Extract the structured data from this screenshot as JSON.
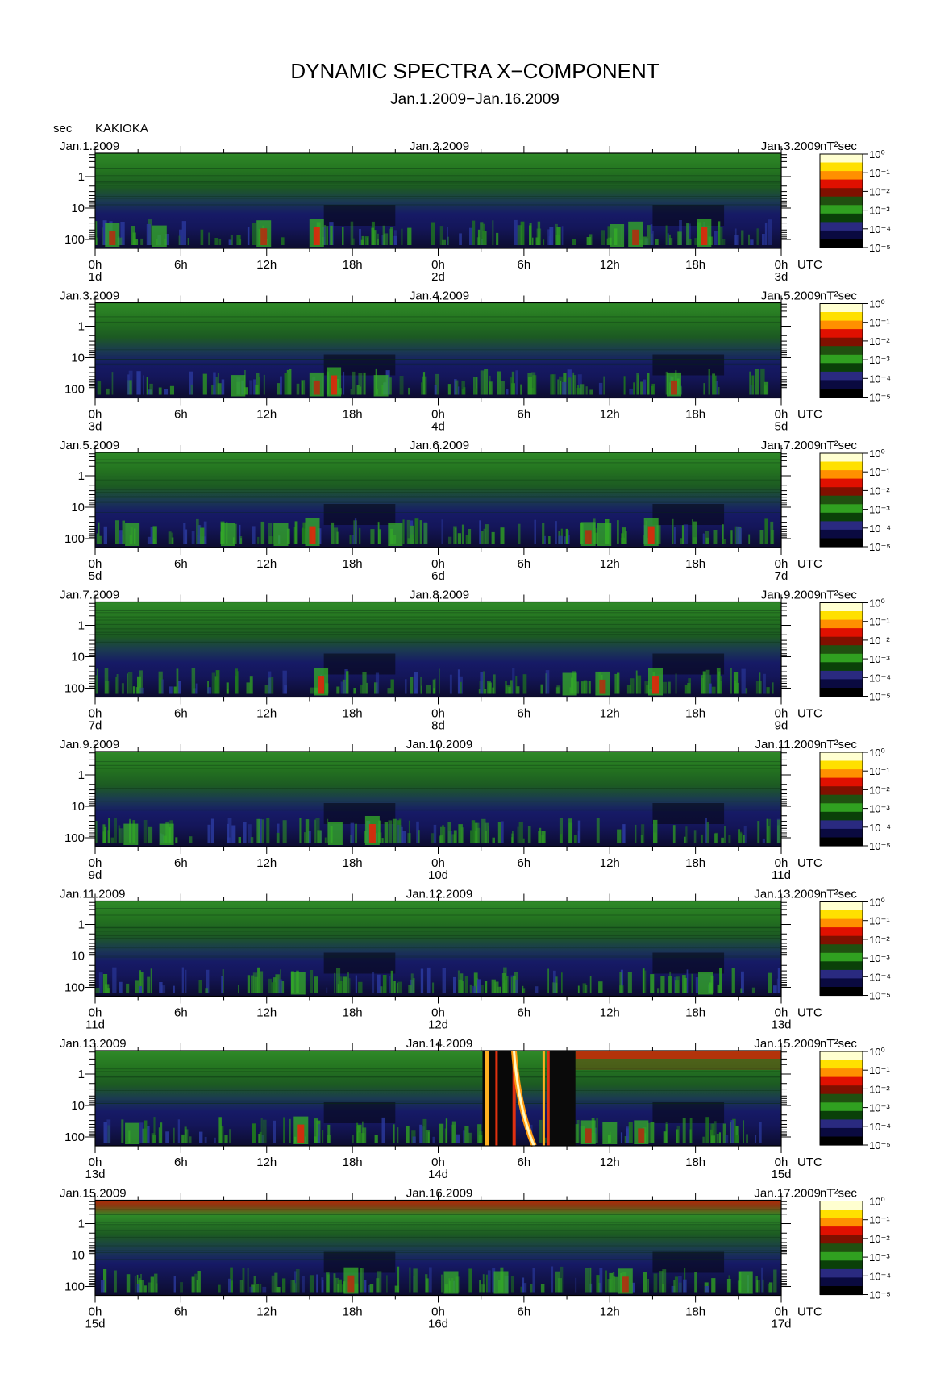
{
  "chart_data": {
    "type": "heatmap",
    "title": "DYNAMIC SPECTRA X−COMPONENT",
    "subtitle": "Jan.1.2009−Jan.16.2009",
    "station": "KAKIOKA",
    "y_unit": "sec",
    "x_unit": "UTC",
    "colorbar_unit": "nT²sec",
    "colorbar_ticks": [
      "10⁰",
      "10⁻¹",
      "10⁻²",
      "10⁻³",
      "10⁻⁴",
      "10⁻⁵"
    ],
    "colorbar_colors": [
      "#ffffd0",
      "#ffe000",
      "#ff9000",
      "#e01000",
      "#801000",
      "#205010",
      "#30a020",
      "#0a4008",
      "#2a2a80",
      "#0a0a40",
      "#000000"
    ],
    "y_ticks": [
      "1",
      "10",
      "100"
    ],
    "x_hour_ticks": [
      "0h",
      "6h",
      "12h",
      "18h",
      "0h",
      "6h",
      "12h",
      "18h",
      "0h"
    ],
    "panels": [
      {
        "start": "Jan.1.2009",
        "mid": "Jan.2.2009",
        "end": "Jan.3.2009",
        "d0": "1d",
        "d1": "2d",
        "d2": "3d",
        "events": [
          [
            1.2,
            0.6
          ],
          [
            4.5,
            0.4
          ],
          [
            11.8,
            0.8
          ],
          [
            15.5,
            0.9
          ],
          [
            36.5,
            0.5
          ],
          [
            37.8,
            0.7
          ],
          [
            42.6,
            0.9
          ]
        ]
      },
      {
        "start": "Jan.3.2009",
        "mid": "Jan.4.2009",
        "end": "Jan.5.2009",
        "d0": "3d",
        "d1": "4d",
        "d2": "5d",
        "events": [
          [
            10,
            0.4
          ],
          [
            15.5,
            0.6
          ],
          [
            16.7,
            1.0
          ],
          [
            20,
            0.4
          ],
          [
            40.5,
            0.6
          ]
        ]
      },
      {
        "start": "Jan.5.2009",
        "mid": "Jan.6.2009",
        "end": "Jan.7.2009",
        "d0": "5d",
        "d1": "6d",
        "d2": "7d",
        "events": [
          [
            2.6,
            0.5
          ],
          [
            9.3,
            0.5
          ],
          [
            13,
            0.5
          ],
          [
            15.2,
            0.9
          ],
          [
            21,
            0.5
          ],
          [
            34.5,
            0.6
          ],
          [
            35.6,
            0.5
          ],
          [
            38.9,
            0.9
          ]
        ]
      },
      {
        "start": "Jan.7.2009",
        "mid": "Jan.8.2009",
        "end": "Jan.9.2009",
        "d0": "7d",
        "d1": "8d",
        "d2": "9d",
        "events": [
          [
            15.8,
            0.9
          ],
          [
            33.2,
            0.5
          ],
          [
            35.5,
            0.6
          ],
          [
            39.2,
            0.9
          ]
        ]
      },
      {
        "start": "Jan.9.2009",
        "mid": "Jan.10.2009",
        "end": "Jan.11.2009",
        "d0": "9d",
        "d1": "10d",
        "d2": "11d",
        "events": [
          [
            2.5,
            0.4
          ],
          [
            5,
            0.4
          ],
          [
            16.8,
            0.5
          ],
          [
            19.4,
            1.0
          ]
        ]
      },
      {
        "start": "Jan.11.2009",
        "mid": "Jan.12.2009",
        "end": "Jan.13.2009",
        "d0": "11d",
        "d1": "12d",
        "d2": "13d",
        "events": [
          [
            14.2,
            0.5
          ],
          [
            42.7,
            0.5
          ]
        ]
      },
      {
        "start": "Jan.13.2009",
        "mid": "Jan.14.2009",
        "end": "Jan.15.2009",
        "d0": "13d",
        "d1": "14d",
        "d2": "15d",
        "events": [
          [
            2.6,
            0.4
          ],
          [
            14.4,
            0.9
          ],
          [
            34.5,
            0.6
          ],
          [
            36,
            0.5
          ],
          [
            38.2,
            0.6
          ]
        ],
        "storm": true
      },
      {
        "start": "Jan.15.2009",
        "mid": "Jan.16.2009",
        "end": "Jan.17.2009",
        "d0": "15d",
        "d1": "16d",
        "d2": "17d",
        "events": [
          [
            17.9,
            0.8
          ],
          [
            24.9,
            0.5
          ],
          [
            28.4,
            0.5
          ],
          [
            37.1,
            0.7
          ],
          [
            45.5,
            0.5
          ]
        ],
        "hot_top": true
      }
    ]
  }
}
